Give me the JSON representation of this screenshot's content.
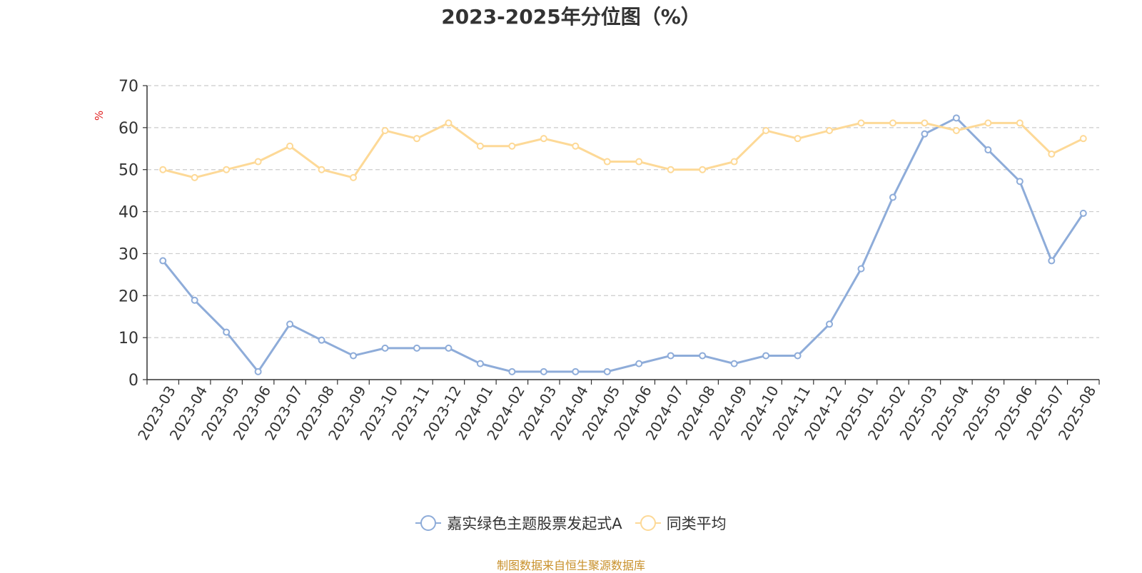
{
  "chart_data": {
    "type": "line",
    "title": "2023-2025年分位图（%）",
    "ylabel": "%",
    "ylim": [
      0,
      70
    ],
    "yticks": [
      0,
      10,
      20,
      30,
      40,
      50,
      60,
      70
    ],
    "grid": true,
    "legend_position": "bottom",
    "categories": [
      "2023-03",
      "2023-04",
      "2023-05",
      "2023-06",
      "2023-07",
      "2023-08",
      "2023-09",
      "2023-10",
      "2023-11",
      "2023-12",
      "2024-01",
      "2024-02",
      "2024-03",
      "2024-04",
      "2024-05",
      "2024-06",
      "2024-07",
      "2024-08",
      "2024-09",
      "2024-10",
      "2024-11",
      "2024-12",
      "2025-01",
      "2025-02",
      "2025-03",
      "2025-04",
      "2025-05",
      "2025-06",
      "2025-07",
      "2025-08"
    ],
    "series": [
      {
        "name": "嘉实绿色主题股票发起式A",
        "color": "#8eacd9",
        "values": [
          28.3,
          18.9,
          11.3,
          1.9,
          13.2,
          9.4,
          5.7,
          7.5,
          7.5,
          7.5,
          3.8,
          1.9,
          1.9,
          1.9,
          1.9,
          3.8,
          5.7,
          5.7,
          3.8,
          5.7,
          5.7,
          13.2,
          26.4,
          43.4,
          58.5,
          62.3,
          54.7,
          47.2,
          28.3,
          39.6
        ]
      },
      {
        "name": "同类平均",
        "color": "#fdd997",
        "values": [
          50.0,
          48.1,
          50.0,
          51.9,
          55.6,
          50.0,
          48.1,
          59.3,
          57.4,
          61.1,
          55.6,
          55.6,
          57.4,
          55.6,
          51.9,
          51.9,
          50.0,
          50.0,
          51.9,
          59.3,
          57.4,
          59.3,
          61.1,
          61.1,
          61.1,
          59.3,
          61.1,
          61.1,
          53.7,
          57.4
        ]
      }
    ],
    "source": "制图数据来自恒生聚源数据库"
  }
}
